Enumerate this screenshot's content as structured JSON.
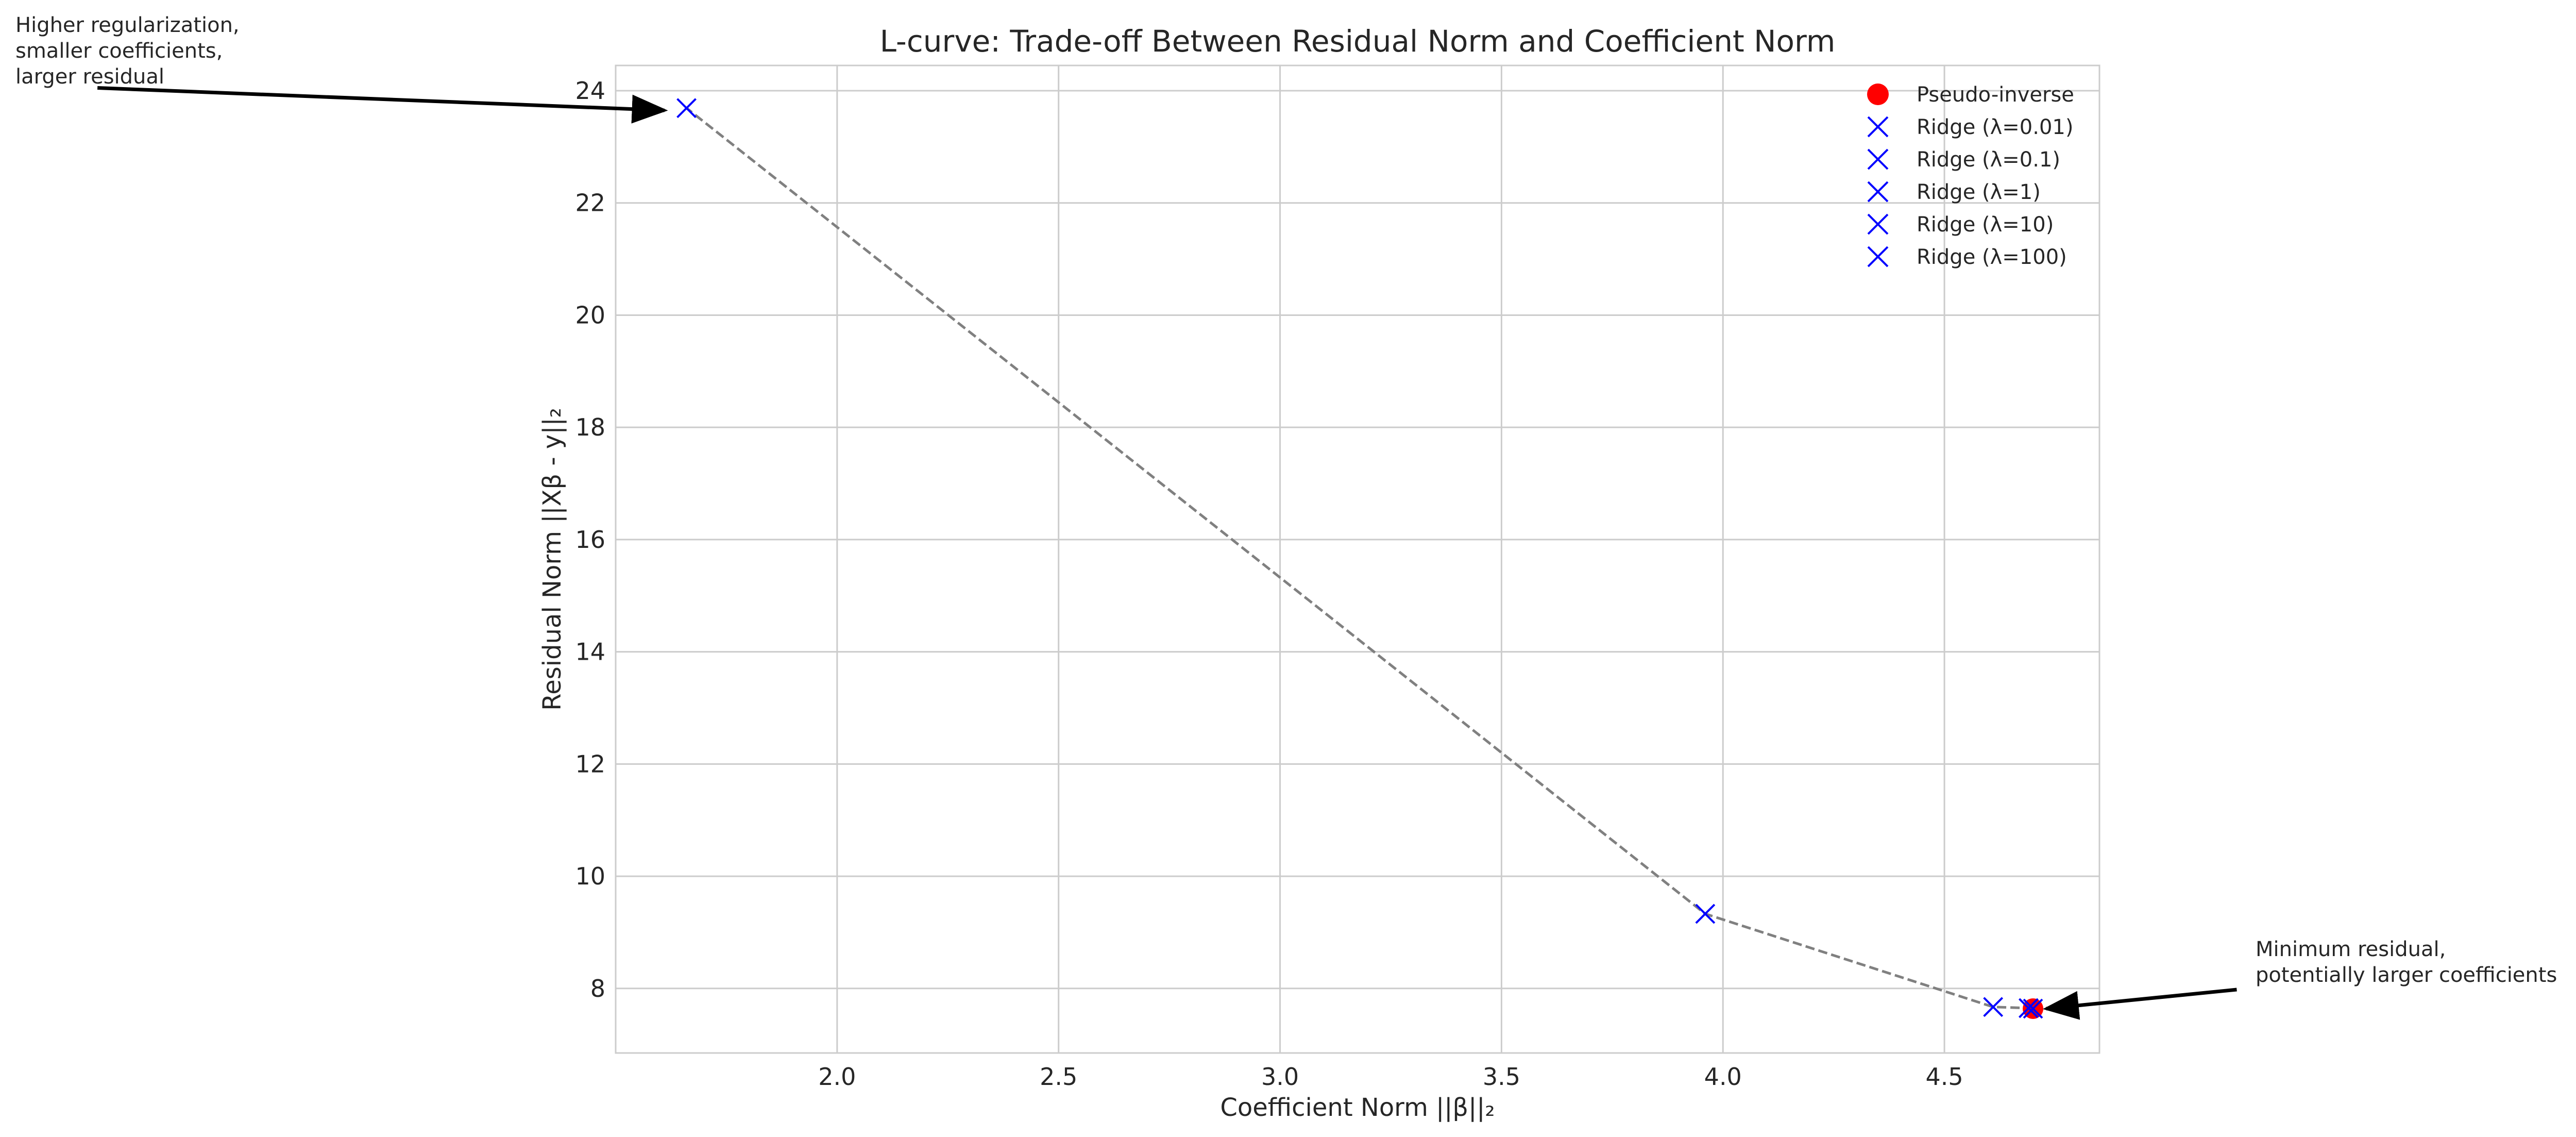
{
  "chart_data": {
    "type": "scatter",
    "title": "L-curve: Trade-off Between Residual Norm and Coefficient Norm",
    "xlabel": "Coefficient Norm ||β||₂",
    "ylabel": "Residual Norm ||Xβ - y||₂",
    "xlim": [
      1.5,
      4.85
    ],
    "ylim": [
      6.85,
      24.45
    ],
    "xticks": [
      2.0,
      2.5,
      3.0,
      3.5,
      4.0,
      4.5
    ],
    "xtick_labels": [
      "2.0",
      "2.5",
      "3.0",
      "3.5",
      "4.0",
      "4.5"
    ],
    "yticks": [
      8,
      10,
      12,
      14,
      16,
      18,
      20,
      22,
      24
    ],
    "ytick_labels": [
      "8",
      "10",
      "12",
      "14",
      "16",
      "18",
      "20",
      "22",
      "24"
    ],
    "grid": true,
    "legend_position": "top-right",
    "curve": {
      "style": "dashed",
      "color": "#808080",
      "x": [
        4.7,
        4.69,
        4.61,
        3.96,
        1.66
      ],
      "y": [
        7.64,
        7.65,
        7.67,
        9.33,
        23.69
      ]
    },
    "series": [
      {
        "name": "Pseudo-inverse",
        "marker": "circle",
        "color": "#ff0000",
        "x": [
          4.7
        ],
        "y": [
          7.64
        ]
      },
      {
        "name": "Ridge (λ=0.01)",
        "marker": "x",
        "color": "#0000ff",
        "x": [
          4.7
        ],
        "y": [
          7.64
        ]
      },
      {
        "name": "Ridge (λ=0.1)",
        "marker": "x",
        "color": "#0000ff",
        "x": [
          4.69
        ],
        "y": [
          7.65
        ]
      },
      {
        "name": "Ridge (λ=1)",
        "marker": "x",
        "color": "#0000ff",
        "x": [
          4.61
        ],
        "y": [
          7.67
        ]
      },
      {
        "name": "Ridge (λ=10)",
        "marker": "x",
        "color": "#0000ff",
        "x": [
          3.96
        ],
        "y": [
          9.33
        ]
      },
      {
        "name": "Ridge (λ=100)",
        "marker": "x",
        "color": "#0000ff",
        "x": [
          1.66
        ],
        "y": [
          23.69
        ]
      }
    ],
    "annotations": [
      {
        "lines": [
          "Higher regularization,",
          "smaller coefficients,",
          "larger residual"
        ],
        "target": [
          1.61,
          23.65
        ],
        "tail": [
          0.33,
          24.05
        ]
      },
      {
        "lines": [
          "Minimum residual,",
          "potentially larger coefficients"
        ],
        "target": [
          4.73,
          7.64
        ],
        "tail": [
          5.16,
          7.98
        ]
      }
    ]
  }
}
